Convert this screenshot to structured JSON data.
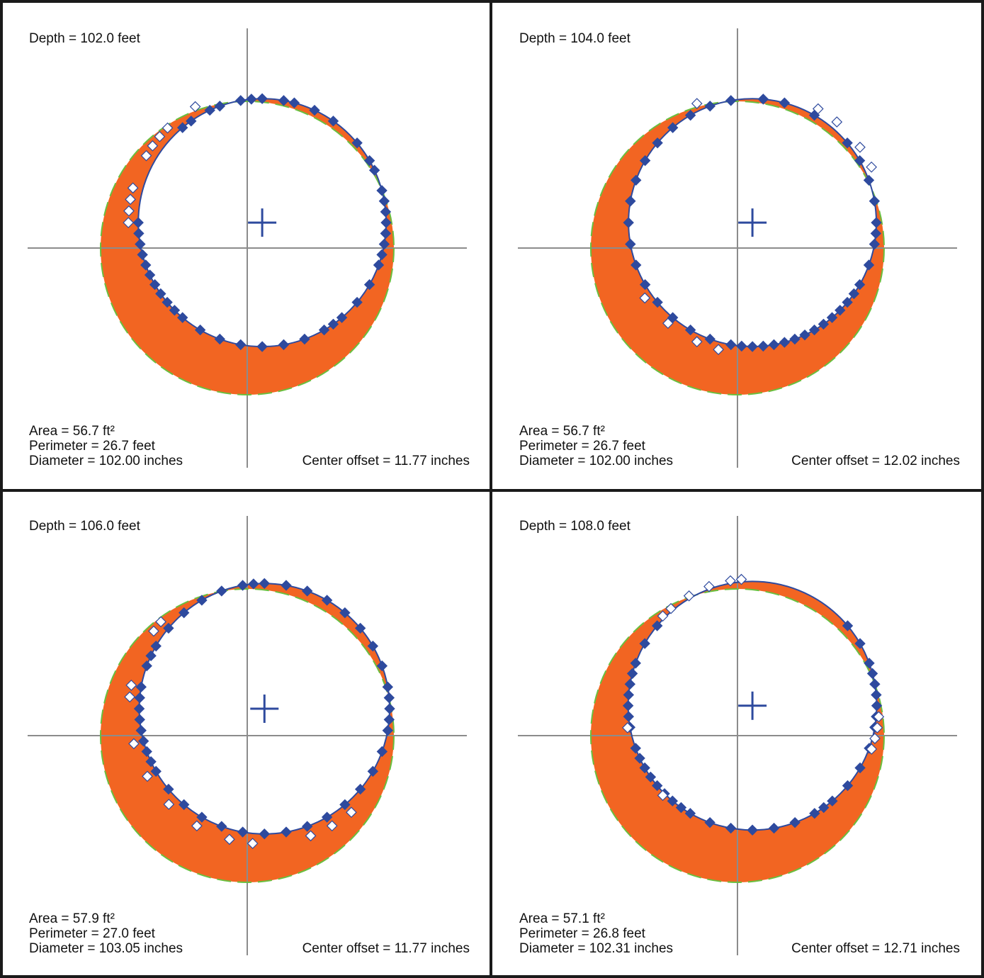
{
  "panels": [
    {
      "depth": "Depth = 102.0 feet",
      "area": "Area = 56.7 ft²",
      "perimeter": "Perimeter = 26.7 feet",
      "diameter": "Diameter = 102.00 inches",
      "center_offset": "Center offset = 11.77 inches"
    },
    {
      "depth": "Depth = 104.0 feet",
      "area": "Area = 56.7 ft²",
      "perimeter": "Perimeter = 26.7 feet",
      "diameter": "Diameter = 102.00 inches",
      "center_offset": "Center offset = 12.02 inches"
    },
    {
      "depth": "Depth = 106.0 feet",
      "area": "Area = 57.9 ft²",
      "perimeter": "Perimeter = 27.0 feet",
      "diameter": "Diameter = 103.05 inches",
      "center_offset": "Center offset = 11.77 inches"
    },
    {
      "depth": "Depth = 108.0 feet",
      "area": "Area = 57.1 ft²",
      "perimeter": "Perimeter = 26.8 feet",
      "diameter": "Diameter = 102.31 inches",
      "center_offset": "Center offset = 12.71 inches"
    }
  ],
  "colors": {
    "overbreak_fill": "#f26522",
    "design_circle": "#6abf3f",
    "fit_circle": "#2e4a9e",
    "axes": "#8c8c8c",
    "frame": "#1a1a1a"
  },
  "chart_data": [
    {
      "type": "scatter",
      "depth_ft": 102.0,
      "measured_fit_center_in": [
        2.0,
        3.4
      ],
      "points_filled_deg": [
        -5,
        0,
        5,
        10,
        15,
        25,
        30,
        40,
        55,
        65,
        75,
        80,
        90,
        95,
        100,
        110,
        115,
        125,
        130,
        180,
        185,
        190,
        195,
        200,
        205,
        210,
        215,
        220,
        225,
        230,
        240,
        250,
        260,
        270,
        280,
        290,
        300,
        305,
        310,
        320,
        330,
        340,
        345,
        350,
        355
      ],
      "points_open_deg": [
        120,
        135,
        140,
        145,
        150,
        165,
        170,
        175,
        180
      ]
    },
    {
      "type": "scatter",
      "depth_ft": 104.0,
      "measured_fit_center_in": [
        2.0,
        3.4
      ],
      "points_filled_deg": [
        -5,
        0,
        10,
        20,
        30,
        40,
        60,
        75,
        85,
        100,
        110,
        120,
        130,
        140,
        150,
        160,
        170,
        180,
        190,
        200,
        210,
        220,
        230,
        240,
        250,
        260,
        265,
        270,
        275,
        280,
        285,
        290,
        295,
        300,
        305,
        310,
        315,
        320,
        325,
        330,
        340,
        350
      ],
      "points_open_deg": [
        25,
        35,
        50,
        60,
        115,
        215,
        230,
        245,
        255
      ],
      "open_point_radius_factor": 1.06
    },
    {
      "type": "scatter",
      "depth_ft": 106.0,
      "measured_fit_center_in": [
        2.3,
        3.6
      ],
      "points_filled_deg": [
        -5,
        0,
        5,
        10,
        20,
        30,
        40,
        50,
        60,
        70,
        80,
        90,
        95,
        100,
        110,
        120,
        130,
        140,
        150,
        155,
        160,
        170,
        175,
        180,
        185,
        190,
        195,
        200,
        205,
        210,
        220,
        230,
        240,
        250,
        260,
        270,
        280,
        290,
        300,
        310,
        320,
        330,
        340,
        350
      ],
      "points_open_deg": [
        140,
        145,
        170,
        175,
        195,
        210,
        225,
        240,
        255,
        265,
        290,
        300,
        310
      ]
    },
    {
      "type": "scatter",
      "depth_ft": 108.0,
      "measured_fit_center_in": [
        2.0,
        4.0
      ],
      "points_filled_deg": [
        -10,
        -5,
        0,
        5,
        10,
        15,
        20,
        30,
        40,
        140,
        150,
        160,
        165,
        170,
        175,
        180,
        185,
        190,
        200,
        205,
        210,
        215,
        220,
        225,
        230,
        235,
        240,
        250,
        260,
        270,
        280,
        290,
        300,
        305,
        310,
        320,
        330,
        340,
        350
      ],
      "points_open_deg": [
        95,
        100,
        110,
        120,
        130,
        135,
        190,
        225,
        340,
        345,
        350,
        355
      ],
      "open_point_radius_factor": 1.02
    }
  ]
}
